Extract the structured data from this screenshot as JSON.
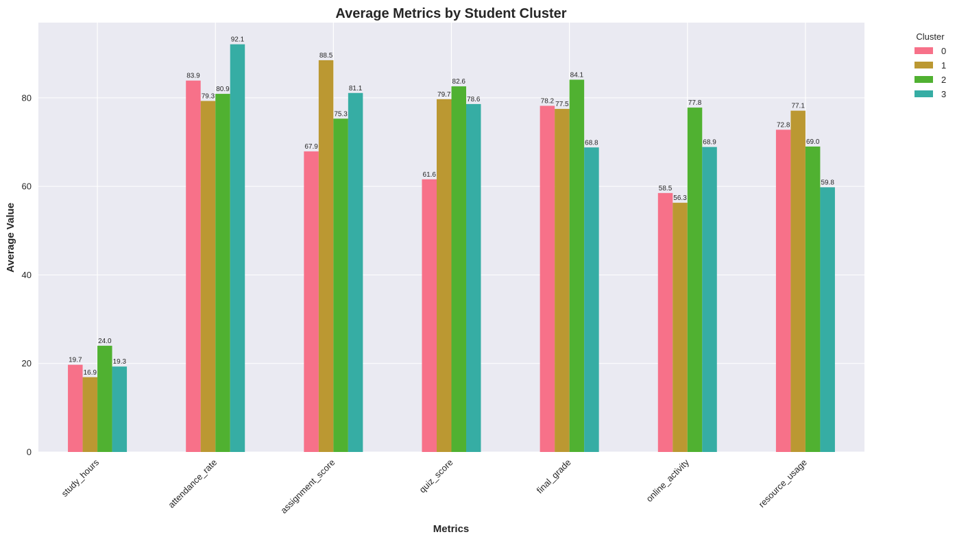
{
  "chart_data": {
    "type": "bar",
    "title": "Average Metrics by Student Cluster",
    "xlabel": "Metrics",
    "ylabel": "Average Value",
    "ylim": [
      0,
      97
    ],
    "yticks": [
      0,
      20,
      40,
      60,
      80
    ],
    "grid": true,
    "legend": {
      "title": "Cluster",
      "placement": "outside-top-right"
    },
    "categories": [
      "study_hours",
      "attendance_rate",
      "assignment_score",
      "quiz_score",
      "final_grade",
      "online_activity",
      "resource_usage"
    ],
    "series": [
      {
        "name": "0",
        "color": "#f77189",
        "values": [
          19.7,
          83.9,
          67.9,
          61.6,
          78.2,
          58.5,
          72.8
        ]
      },
      {
        "name": "1",
        "color": "#bb9832",
        "values": [
          16.9,
          79.3,
          88.5,
          79.7,
          77.5,
          56.3,
          77.1
        ]
      },
      {
        "name": "2",
        "color": "#50b131",
        "values": [
          24.0,
          80.9,
          75.3,
          82.6,
          84.1,
          77.8,
          69.0
        ]
      },
      {
        "name": "3",
        "color": "#36ada4",
        "values": [
          19.3,
          92.1,
          81.1,
          78.6,
          68.8,
          68.9,
          59.8
        ]
      }
    ],
    "colors": {
      "plot_background": "#eaeaf2",
      "grid": "#ffffff"
    }
  }
}
